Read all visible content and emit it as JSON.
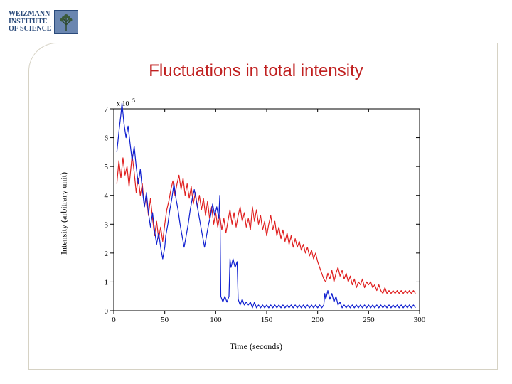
{
  "logo": {
    "line1": "WEIZMANN",
    "line2": "INSTITUTE",
    "line3": "OF SCIENCE",
    "text_color": "#2a4a7a",
    "mark_border": "#2a4a7a",
    "mark_bg": "#6a86b0",
    "tree_color": "#3a5a3a"
  },
  "title": {
    "text": "Fluctuations in total intensity",
    "color": "#c02020",
    "fontsize": 24
  },
  "chart": {
    "type": "line",
    "background_color": "#ffffff",
    "axis_color": "#000000",
    "tick_fontsize": 11,
    "label_fontsize": 12,
    "line_width": 1.2,
    "xlabel": "Time (seconds)",
    "ylabel": "Intensity (arbitrary unit)",
    "exponent_label": "x 10",
    "exponent_sup": "5",
    "xlim": [
      0,
      300
    ],
    "ylim": [
      0,
      7
    ],
    "xticks": [
      0,
      50,
      100,
      150,
      200,
      250,
      300
    ],
    "yticks": [
      0,
      1,
      2,
      3,
      4,
      5,
      6,
      7
    ],
    "series": [
      {
        "name": "red",
        "color": "#e02020",
        "data": [
          [
            3,
            4.4
          ],
          [
            5,
            5.2
          ],
          [
            7,
            4.6
          ],
          [
            9,
            5.3
          ],
          [
            11,
            4.7
          ],
          [
            13,
            5.0
          ],
          [
            15,
            4.3
          ],
          [
            18,
            5.4
          ],
          [
            20,
            4.8
          ],
          [
            22,
            4.1
          ],
          [
            24,
            4.6
          ],
          [
            26,
            4.0
          ],
          [
            28,
            4.4
          ],
          [
            30,
            3.6
          ],
          [
            32,
            4.0
          ],
          [
            34,
            3.3
          ],
          [
            36,
            3.9
          ],
          [
            38,
            3.2
          ],
          [
            40,
            2.6
          ],
          [
            42,
            3.1
          ],
          [
            44,
            2.5
          ],
          [
            46,
            2.9
          ],
          [
            48,
            2.4
          ],
          [
            50,
            3.0
          ],
          [
            52,
            3.5
          ],
          [
            54,
            3.8
          ],
          [
            56,
            4.2
          ],
          [
            58,
            4.5
          ],
          [
            60,
            4.0
          ],
          [
            62,
            4.4
          ],
          [
            64,
            4.7
          ],
          [
            66,
            4.2
          ],
          [
            68,
            4.6
          ],
          [
            70,
            4.0
          ],
          [
            72,
            4.4
          ],
          [
            74,
            3.9
          ],
          [
            76,
            4.3
          ],
          [
            78,
            3.7
          ],
          [
            80,
            4.1
          ],
          [
            82,
            3.6
          ],
          [
            84,
            4.0
          ],
          [
            86,
            3.5
          ],
          [
            88,
            3.9
          ],
          [
            90,
            3.3
          ],
          [
            92,
            3.8
          ],
          [
            94,
            3.2
          ],
          [
            96,
            3.6
          ],
          [
            98,
            3.0
          ],
          [
            100,
            3.4
          ],
          [
            102,
            2.9
          ],
          [
            104,
            3.3
          ],
          [
            106,
            2.8
          ],
          [
            108,
            3.2
          ],
          [
            110,
            2.7
          ],
          [
            112,
            3.1
          ],
          [
            114,
            3.5
          ],
          [
            116,
            3.0
          ],
          [
            118,
            3.4
          ],
          [
            120,
            2.9
          ],
          [
            122,
            3.3
          ],
          [
            124,
            3.6
          ],
          [
            126,
            3.1
          ],
          [
            128,
            3.4
          ],
          [
            130,
            2.9
          ],
          [
            132,
            3.2
          ],
          [
            134,
            2.8
          ],
          [
            136,
            3.6
          ],
          [
            138,
            3.1
          ],
          [
            140,
            3.5
          ],
          [
            142,
            3.0
          ],
          [
            144,
            3.3
          ],
          [
            146,
            2.8
          ],
          [
            148,
            3.1
          ],
          [
            150,
            2.6
          ],
          [
            152,
            3.0
          ],
          [
            154,
            3.3
          ],
          [
            156,
            2.8
          ],
          [
            158,
            3.1
          ],
          [
            160,
            2.6
          ],
          [
            162,
            2.9
          ],
          [
            164,
            2.5
          ],
          [
            166,
            2.8
          ],
          [
            168,
            2.4
          ],
          [
            170,
            2.7
          ],
          [
            172,
            2.3
          ],
          [
            174,
            2.6
          ],
          [
            176,
            2.2
          ],
          [
            178,
            2.5
          ],
          [
            180,
            2.2
          ],
          [
            182,
            2.4
          ],
          [
            184,
            2.1
          ],
          [
            186,
            2.3
          ],
          [
            188,
            2.0
          ],
          [
            190,
            2.2
          ],
          [
            192,
            1.9
          ],
          [
            194,
            2.1
          ],
          [
            196,
            1.8
          ],
          [
            198,
            2.0
          ],
          [
            200,
            1.7
          ],
          [
            202,
            1.5
          ],
          [
            204,
            1.3
          ],
          [
            206,
            1.1
          ],
          [
            208,
            1.0
          ],
          [
            210,
            1.3
          ],
          [
            212,
            1.1
          ],
          [
            214,
            1.4
          ],
          [
            216,
            1.0
          ],
          [
            218,
            1.3
          ],
          [
            220,
            1.5
          ],
          [
            222,
            1.2
          ],
          [
            224,
            1.4
          ],
          [
            226,
            1.1
          ],
          [
            228,
            1.3
          ],
          [
            230,
            1.0
          ],
          [
            232,
            1.2
          ],
          [
            234,
            0.9
          ],
          [
            236,
            1.1
          ],
          [
            238,
            0.8
          ],
          [
            240,
            1.0
          ],
          [
            242,
            0.9
          ],
          [
            244,
            1.1
          ],
          [
            246,
            0.8
          ],
          [
            248,
            1.0
          ],
          [
            250,
            0.9
          ],
          [
            252,
            1.0
          ],
          [
            254,
            0.8
          ],
          [
            256,
            0.9
          ],
          [
            258,
            0.7
          ],
          [
            260,
            0.9
          ],
          [
            262,
            0.7
          ],
          [
            264,
            0.6
          ],
          [
            266,
            0.8
          ],
          [
            268,
            0.6
          ],
          [
            270,
            0.7
          ],
          [
            272,
            0.6
          ],
          [
            274,
            0.7
          ],
          [
            276,
            0.6
          ],
          [
            278,
            0.7
          ],
          [
            280,
            0.6
          ],
          [
            282,
            0.7
          ],
          [
            284,
            0.6
          ],
          [
            286,
            0.7
          ],
          [
            288,
            0.6
          ],
          [
            290,
            0.7
          ],
          [
            292,
            0.6
          ],
          [
            294,
            0.7
          ],
          [
            296,
            0.6
          ]
        ]
      },
      {
        "name": "blue",
        "color": "#1020d0",
        "data": [
          [
            3,
            5.5
          ],
          [
            5,
            6.2
          ],
          [
            7,
            6.8
          ],
          [
            8,
            7.2
          ],
          [
            10,
            6.5
          ],
          [
            12,
            6.0
          ],
          [
            14,
            6.4
          ],
          [
            16,
            5.8
          ],
          [
            18,
            5.2
          ],
          [
            20,
            5.7
          ],
          [
            22,
            5.0
          ],
          [
            24,
            4.4
          ],
          [
            26,
            4.9
          ],
          [
            28,
            4.2
          ],
          [
            30,
            3.6
          ],
          [
            32,
            4.1
          ],
          [
            34,
            3.4
          ],
          [
            36,
            2.9
          ],
          [
            38,
            3.4
          ],
          [
            40,
            2.8
          ],
          [
            42,
            2.3
          ],
          [
            44,
            2.7
          ],
          [
            46,
            2.2
          ],
          [
            48,
            1.8
          ],
          [
            50,
            2.2
          ],
          [
            51,
            2.6
          ],
          [
            53,
            3.0
          ],
          [
            55,
            3.5
          ],
          [
            57,
            3.9
          ],
          [
            59,
            4.4
          ],
          [
            61,
            3.9
          ],
          [
            63,
            3.5
          ],
          [
            65,
            3.0
          ],
          [
            67,
            2.6
          ],
          [
            69,
            2.2
          ],
          [
            71,
            2.6
          ],
          [
            73,
            3.0
          ],
          [
            75,
            3.5
          ],
          [
            77,
            3.9
          ],
          [
            79,
            4.2
          ],
          [
            81,
            3.8
          ],
          [
            83,
            3.4
          ],
          [
            85,
            3.0
          ],
          [
            87,
            2.6
          ],
          [
            89,
            2.2
          ],
          [
            91,
            2.6
          ],
          [
            93,
            3.0
          ],
          [
            95,
            3.3
          ],
          [
            97,
            3.7
          ],
          [
            99,
            3.3
          ],
          [
            101,
            3.6
          ],
          [
            103,
            3.2
          ],
          [
            104,
            4.0
          ],
          [
            105,
            0.5
          ],
          [
            107,
            0.3
          ],
          [
            109,
            0.5
          ],
          [
            111,
            0.3
          ],
          [
            113,
            0.5
          ],
          [
            114,
            1.8
          ],
          [
            115,
            1.5
          ],
          [
            117,
            1.8
          ],
          [
            119,
            1.5
          ],
          [
            121,
            1.7
          ],
          [
            122,
            0.4
          ],
          [
            124,
            0.2
          ],
          [
            126,
            0.4
          ],
          [
            128,
            0.2
          ],
          [
            130,
            0.3
          ],
          [
            132,
            0.2
          ],
          [
            134,
            0.3
          ],
          [
            136,
            0.1
          ],
          [
            138,
            0.3
          ],
          [
            140,
            0.1
          ],
          [
            142,
            0.2
          ],
          [
            144,
            0.1
          ],
          [
            146,
            0.2
          ],
          [
            148,
            0.1
          ],
          [
            150,
            0.2
          ],
          [
            152,
            0.1
          ],
          [
            154,
            0.2
          ],
          [
            156,
            0.1
          ],
          [
            158,
            0.2
          ],
          [
            160,
            0.1
          ],
          [
            162,
            0.2
          ],
          [
            164,
            0.1
          ],
          [
            166,
            0.2
          ],
          [
            168,
            0.1
          ],
          [
            170,
            0.2
          ],
          [
            172,
            0.1
          ],
          [
            174,
            0.2
          ],
          [
            176,
            0.1
          ],
          [
            178,
            0.2
          ],
          [
            180,
            0.1
          ],
          [
            182,
            0.2
          ],
          [
            184,
            0.1
          ],
          [
            186,
            0.2
          ],
          [
            188,
            0.1
          ],
          [
            190,
            0.2
          ],
          [
            192,
            0.1
          ],
          [
            194,
            0.2
          ],
          [
            196,
            0.1
          ],
          [
            198,
            0.2
          ],
          [
            200,
            0.1
          ],
          [
            202,
            0.2
          ],
          [
            204,
            0.1
          ],
          [
            206,
            0.2
          ],
          [
            207,
            0.6
          ],
          [
            208,
            0.4
          ],
          [
            210,
            0.7
          ],
          [
            212,
            0.4
          ],
          [
            214,
            0.6
          ],
          [
            216,
            0.3
          ],
          [
            218,
            0.5
          ],
          [
            220,
            0.2
          ],
          [
            222,
            0.3
          ],
          [
            224,
            0.1
          ],
          [
            226,
            0.2
          ],
          [
            228,
            0.1
          ],
          [
            230,
            0.2
          ],
          [
            232,
            0.1
          ],
          [
            234,
            0.2
          ],
          [
            236,
            0.1
          ],
          [
            238,
            0.2
          ],
          [
            240,
            0.1
          ],
          [
            242,
            0.2
          ],
          [
            244,
            0.1
          ],
          [
            246,
            0.2
          ],
          [
            248,
            0.1
          ],
          [
            250,
            0.2
          ],
          [
            252,
            0.1
          ],
          [
            254,
            0.2
          ],
          [
            256,
            0.1
          ],
          [
            258,
            0.2
          ],
          [
            260,
            0.1
          ],
          [
            262,
            0.2
          ],
          [
            264,
            0.1
          ],
          [
            266,
            0.2
          ],
          [
            268,
            0.1
          ],
          [
            270,
            0.2
          ],
          [
            272,
            0.1
          ],
          [
            274,
            0.2
          ],
          [
            276,
            0.1
          ],
          [
            278,
            0.2
          ],
          [
            280,
            0.1
          ],
          [
            282,
            0.2
          ],
          [
            284,
            0.1
          ],
          [
            286,
            0.2
          ],
          [
            288,
            0.1
          ],
          [
            290,
            0.2
          ],
          [
            292,
            0.1
          ],
          [
            294,
            0.2
          ],
          [
            296,
            0.1
          ]
        ]
      }
    ]
  }
}
